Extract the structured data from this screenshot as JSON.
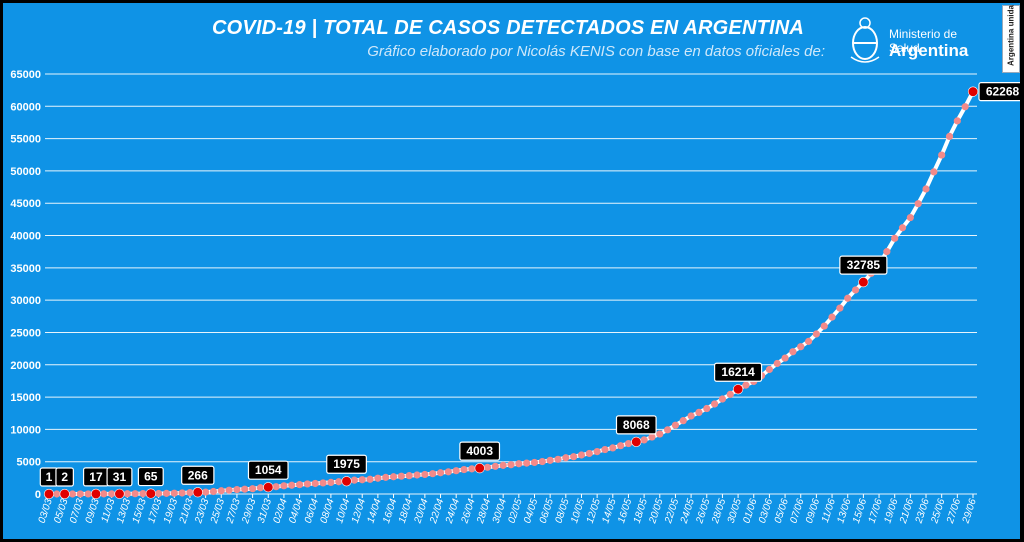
{
  "header": {
    "title": "COVID-19  |  TOTAL DE CASOS DETECTADOS EN ARGENTINA",
    "subtitle": "Gráfico elaborado por Nicolás KENIS con base en datos oficiales de:",
    "logo_line1": "Ministerio de Salud",
    "logo_line2": "Argentina",
    "side_badge": "Argentina unida"
  },
  "colors": {
    "background": "#0f93e6",
    "gridline": "#ffffff",
    "line": "#ffffff",
    "points": "#f28a8a",
    "highlight_points": "#e00000",
    "label_box": "#000000",
    "label_text": "#ffffff"
  },
  "chart_data": {
    "type": "line",
    "title": "COVID-19  |  TOTAL DE CASOS DETECTADOS EN ARGENTINA",
    "xlabel": "",
    "ylabel": "",
    "ylim": [
      0,
      65000
    ],
    "yticks": [
      0,
      5000,
      10000,
      15000,
      20000,
      25000,
      30000,
      35000,
      40000,
      45000,
      50000,
      55000,
      60000,
      65000
    ],
    "grid": true,
    "x": [
      "03/03",
      "04/03",
      "05/03",
      "06/03",
      "07/03",
      "08/03",
      "09/03",
      "10/03",
      "11/03",
      "12/03",
      "13/03",
      "14/03",
      "15/03",
      "16/03",
      "17/03",
      "18/03",
      "19/03",
      "20/03",
      "21/03",
      "22/03",
      "23/03",
      "24/03",
      "25/03",
      "26/03",
      "27/03",
      "28/03",
      "29/03",
      "30/03",
      "31/03",
      "01/04",
      "02/04",
      "03/04",
      "04/04",
      "05/04",
      "06/04",
      "07/04",
      "08/04",
      "09/04",
      "10/04",
      "11/04",
      "12/04",
      "13/04",
      "14/04",
      "15/04",
      "16/04",
      "17/04",
      "18/04",
      "19/04",
      "20/04",
      "21/04",
      "22/04",
      "23/04",
      "24/04",
      "25/04",
      "26/04",
      "27/04",
      "28/04",
      "29/04",
      "30/04",
      "01/05",
      "02/05",
      "03/05",
      "04/05",
      "05/05",
      "06/05",
      "07/05",
      "08/05",
      "09/05",
      "10/05",
      "11/05",
      "12/05",
      "13/05",
      "14/05",
      "15/05",
      "16/05",
      "17/05",
      "18/05",
      "19/05",
      "20/05",
      "21/05",
      "22/05",
      "23/05",
      "24/05",
      "25/05",
      "26/05",
      "27/05",
      "28/05",
      "29/05",
      "30/05",
      "31/05",
      "01/06",
      "02/06",
      "03/06",
      "04/06",
      "05/06",
      "06/06",
      "07/06",
      "08/06",
      "09/06",
      "10/06",
      "11/06",
      "12/06",
      "13/06",
      "14/06",
      "15/06",
      "16/06",
      "17/06",
      "18/06",
      "19/06",
      "20/06",
      "21/06",
      "22/06",
      "23/06",
      "24/06",
      "25/06",
      "26/06",
      "27/06",
      "28/06",
      "29/06"
    ],
    "x_tick_labels": [
      "03/03",
      "05/03",
      "07/03",
      "09/03",
      "11/03",
      "13/03",
      "15/03",
      "17/03",
      "19/03",
      "21/03",
      "23/03",
      "25/03",
      "27/03",
      "29/03",
      "31/03",
      "02/04",
      "04/04",
      "06/04",
      "08/04",
      "10/04",
      "12/04",
      "14/04",
      "16/04",
      "18/04",
      "20/04",
      "22/04",
      "24/04",
      "26/04",
      "28/04",
      "30/04",
      "02/05",
      "04/05",
      "06/05",
      "08/05",
      "10/05",
      "12/05",
      "14/05",
      "16/05",
      "18/05",
      "20/05",
      "22/05",
      "24/05",
      "26/05",
      "28/05",
      "30/05",
      "01/06",
      "03/06",
      "05/06",
      "07/06",
      "09/06",
      "11/06",
      "13/06",
      "15/06",
      "17/06",
      "19/06",
      "21/06",
      "23/06",
      "25/06",
      "27/06",
      "29/06"
    ],
    "series": [
      {
        "values": [
          1,
          1,
          2,
          2,
          12,
          12,
          17,
          19,
          21,
          31,
          34,
          45,
          56,
          65,
          79,
          97,
          128,
          158,
          225,
          266,
          301,
          387,
          502,
          589,
          690,
          745,
          820,
          966,
          1054,
          1133,
          1265,
          1353,
          1451,
          1554,
          1628,
          1715,
          1795,
          1894,
          1975,
          2142,
          2208,
          2277,
          2443,
          2571,
          2669,
          2758,
          2839,
          2941,
          3031,
          3144,
          3288,
          3435,
          3607,
          3780,
          3892,
          4003,
          4127,
          4285,
          4428,
          4532,
          4681,
          4783,
          4887,
          5020,
          5208,
          5371,
          5611,
          5776,
          6034,
          6278,
          6563,
          6879,
          7134,
          7479,
          7805,
          8068,
          8371,
          8809,
          9283,
          9931,
          10649,
          11353,
          12076,
          12628,
          13228,
          13933,
          14702,
          15419,
          16214,
          16851,
          17415,
          18319,
          19268,
          20197,
          21037,
          22020,
          22794,
          23620,
          24761,
          25987,
          27373,
          28764,
          30295,
          31577,
          32785,
          34159,
          35552,
          37510,
          39570,
          41204,
          42785,
          44931,
          47203,
          49851,
          52457,
          55343,
          57744,
          59933,
          62268
        ],
        "highlight_labels": [
          {
            "x": "03/03",
            "value": 1
          },
          {
            "x": "05/03",
            "value": 2
          },
          {
            "x": "09/03",
            "value": 17
          },
          {
            "x": "12/03",
            "value": 31
          },
          {
            "x": "16/03",
            "value": 65
          },
          {
            "x": "22/03",
            "value": 266
          },
          {
            "x": "31/03",
            "value": 1054
          },
          {
            "x": "10/04",
            "value": 1975
          },
          {
            "x": "27/04",
            "value": 4003
          },
          {
            "x": "17/05",
            "value": 8068
          },
          {
            "x": "30/05",
            "value": 16214
          },
          {
            "x": "15/06",
            "value": 32785
          },
          {
            "x": "29/06",
            "value": 62268
          }
        ]
      }
    ]
  }
}
